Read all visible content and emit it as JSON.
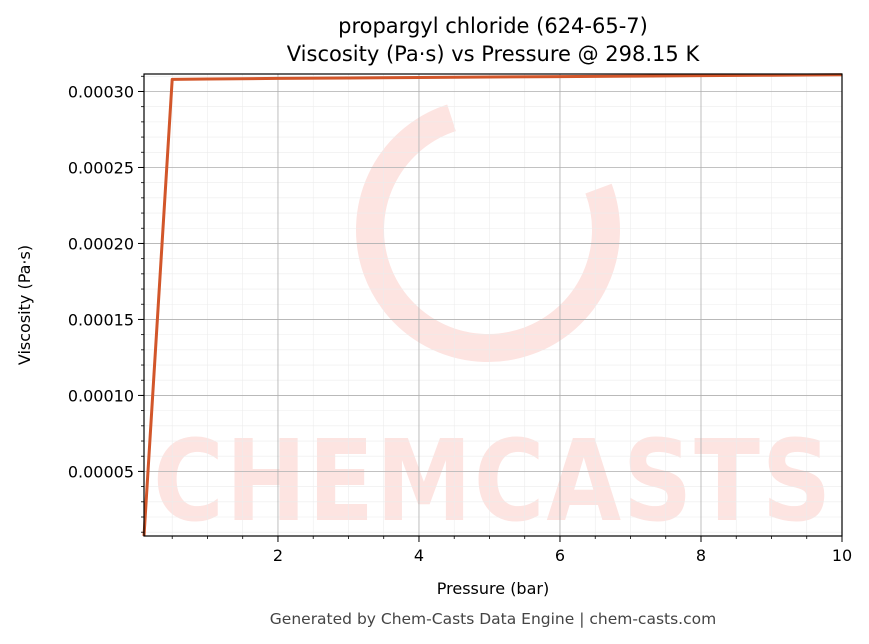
{
  "chart_data": {
    "type": "line",
    "title": "propargyl chloride (624-65-7)",
    "subtitle": "Viscosity (Pa·s) vs Pressure @ 298.15 K",
    "xlabel": "Pressure (bar)",
    "ylabel": "Viscosity (Pa·s)",
    "xlim": [
      0.1,
      10
    ],
    "ylim": [
      7.5e-06,
      0.0003115
    ],
    "x_ticks": [
      2,
      4,
      6,
      8,
      10
    ],
    "x_tick_labels": [
      "2",
      "4",
      "6",
      "8",
      "10"
    ],
    "y_ticks": [
      5e-05,
      0.0001,
      0.00015,
      0.0002,
      0.00025,
      0.0003
    ],
    "y_tick_labels": [
      "0.00005",
      "0.00010",
      "0.00015",
      "0.00020",
      "0.00025",
      "0.00030"
    ],
    "grid": true,
    "series": [
      {
        "color": "#d2562a",
        "x": [
          0.1,
          0.5,
          1,
          2,
          3,
          4,
          5,
          6,
          7,
          8,
          9,
          10
        ],
        "y": [
          7.5e-06,
          0.000308,
          0.0003082,
          0.0003086,
          0.0003089,
          0.0003092,
          0.0003095,
          0.0003098,
          0.0003101,
          0.0003104,
          0.0003107,
          0.000311
        ]
      }
    ]
  },
  "watermark": {
    "text": "CHEMCASTS",
    "color": "#fde4e1"
  },
  "footer": "Generated by Chem-Casts Data Engine | chem-casts.com"
}
